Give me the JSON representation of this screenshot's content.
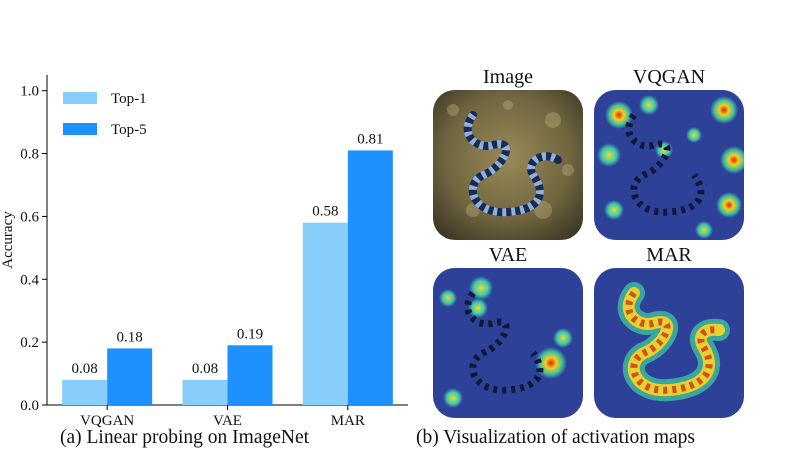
{
  "chart_data": {
    "type": "bar",
    "categories": [
      "VQGAN",
      "VAE",
      "MAR"
    ],
    "series": [
      {
        "name": "Top-1",
        "values": [
          0.08,
          0.08,
          0.58
        ],
        "color": "#87CEFA"
      },
      {
        "name": "Top-5",
        "values": [
          0.18,
          0.19,
          0.81
        ],
        "color": "#1E90FF"
      }
    ],
    "data_labels": [
      [
        "0.08",
        "0.08",
        "0.58"
      ],
      [
        "0.18",
        "0.19",
        "0.81"
      ]
    ],
    "ylabel": "Accuracy",
    "ylim": [
      0,
      1.05
    ],
    "yticks": [
      0.0,
      0.2,
      0.4,
      0.6,
      0.8,
      1.0
    ],
    "ytick_labels": [
      "0.0",
      "0.2",
      "0.4",
      "0.6",
      "0.8",
      "1.0"
    ],
    "legend_position": "top-left",
    "grid": false
  },
  "captions": {
    "left": "(a) Linear probing on ImageNet",
    "right": "(b) Visualization of activation maps"
  },
  "panels": [
    {
      "label": "Image",
      "kind": "photo"
    },
    {
      "label": "VQGAN",
      "kind": "scattered-heatmap"
    },
    {
      "label": "VAE",
      "kind": "sparse-heatmap"
    },
    {
      "label": "MAR",
      "kind": "snake-heatmap"
    }
  ]
}
